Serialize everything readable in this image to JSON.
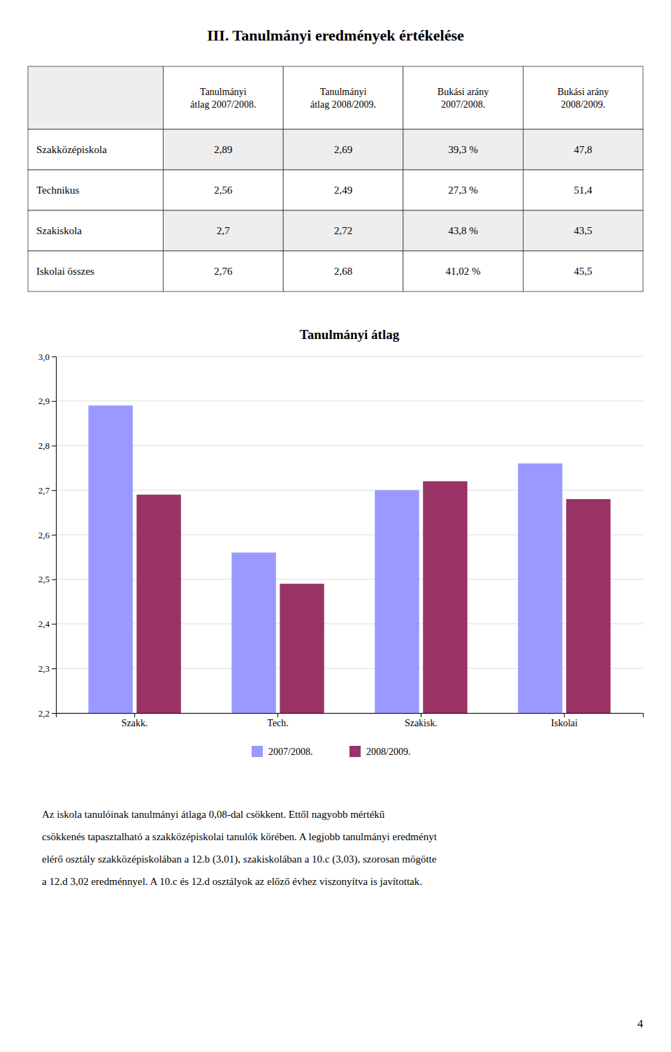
{
  "title": "III. Tanulmányi eredmények értékelése",
  "table": {
    "headers": [
      "Tanulmányi\nátlag 2007/2008.",
      "Tanulmányi\nátlag 2008/2009.",
      "Bukási arány\n2007/2008.",
      "Bukási arány\n2008/2009."
    ],
    "rows": [
      [
        "Szakközépiskola",
        "2,89",
        "2,69",
        "39,3 %",
        "47,8"
      ],
      [
        "Technikus",
        "2,56",
        "2,49",
        "27,3 %",
        "51,4"
      ],
      [
        "Szakiskola",
        "2,7",
        "2,72",
        "43,8 %",
        "43,5"
      ],
      [
        "Iskolai összes",
        "2,76",
        "2,68",
        "41,02 %",
        "45,5"
      ]
    ]
  },
  "chart_data": {
    "type": "bar",
    "title": "Tanulmányi átlag",
    "categories": [
      "Szakk.",
      "Tech.",
      "Szakisk.",
      "Iskolai"
    ],
    "series": [
      {
        "name": "2007/2008.",
        "color": "#9999FF",
        "values": [
          2.89,
          2.56,
          2.7,
          2.76
        ]
      },
      {
        "name": "2008/2009.",
        "color": "#993366",
        "values": [
          2.69,
          2.49,
          2.72,
          2.68
        ]
      }
    ],
    "ylim": [
      2.2,
      3.0
    ],
    "yticks": [
      {
        "value": 2.2,
        "label": "2,2"
      },
      {
        "value": 2.3,
        "label": "2,3"
      },
      {
        "value": 2.4,
        "label": "2,4"
      },
      {
        "value": 2.5,
        "label": "2,5"
      },
      {
        "value": 2.6,
        "label": "2,6"
      },
      {
        "value": 2.7,
        "label": "2,7"
      },
      {
        "value": 2.8,
        "label": "2,8"
      },
      {
        "value": 2.9,
        "label": "2,9"
      },
      {
        "value": 3.0,
        "label": "3,0"
      }
    ],
    "grid": true,
    "legend": "bottom"
  },
  "body_text": [
    "Az iskola tanulóinak tanulmányi átlaga 0,08-dal csökkent. Ettől nagyobb mértékű",
    "csökkenés tapasztalható a szakközépiskolai tanulók körében. A legjobb tanulmányi eredményt",
    "elérő osztály szakközépiskolában a 12.b (3,01), szakiskolában a 10.c (3,03), szorosan mögötte",
    "a 12.d 3,02 eredménnyel. A 10.c és 12.d osztályok az előző évhez viszonyítva is javítottak."
  ],
  "page_number": "4"
}
